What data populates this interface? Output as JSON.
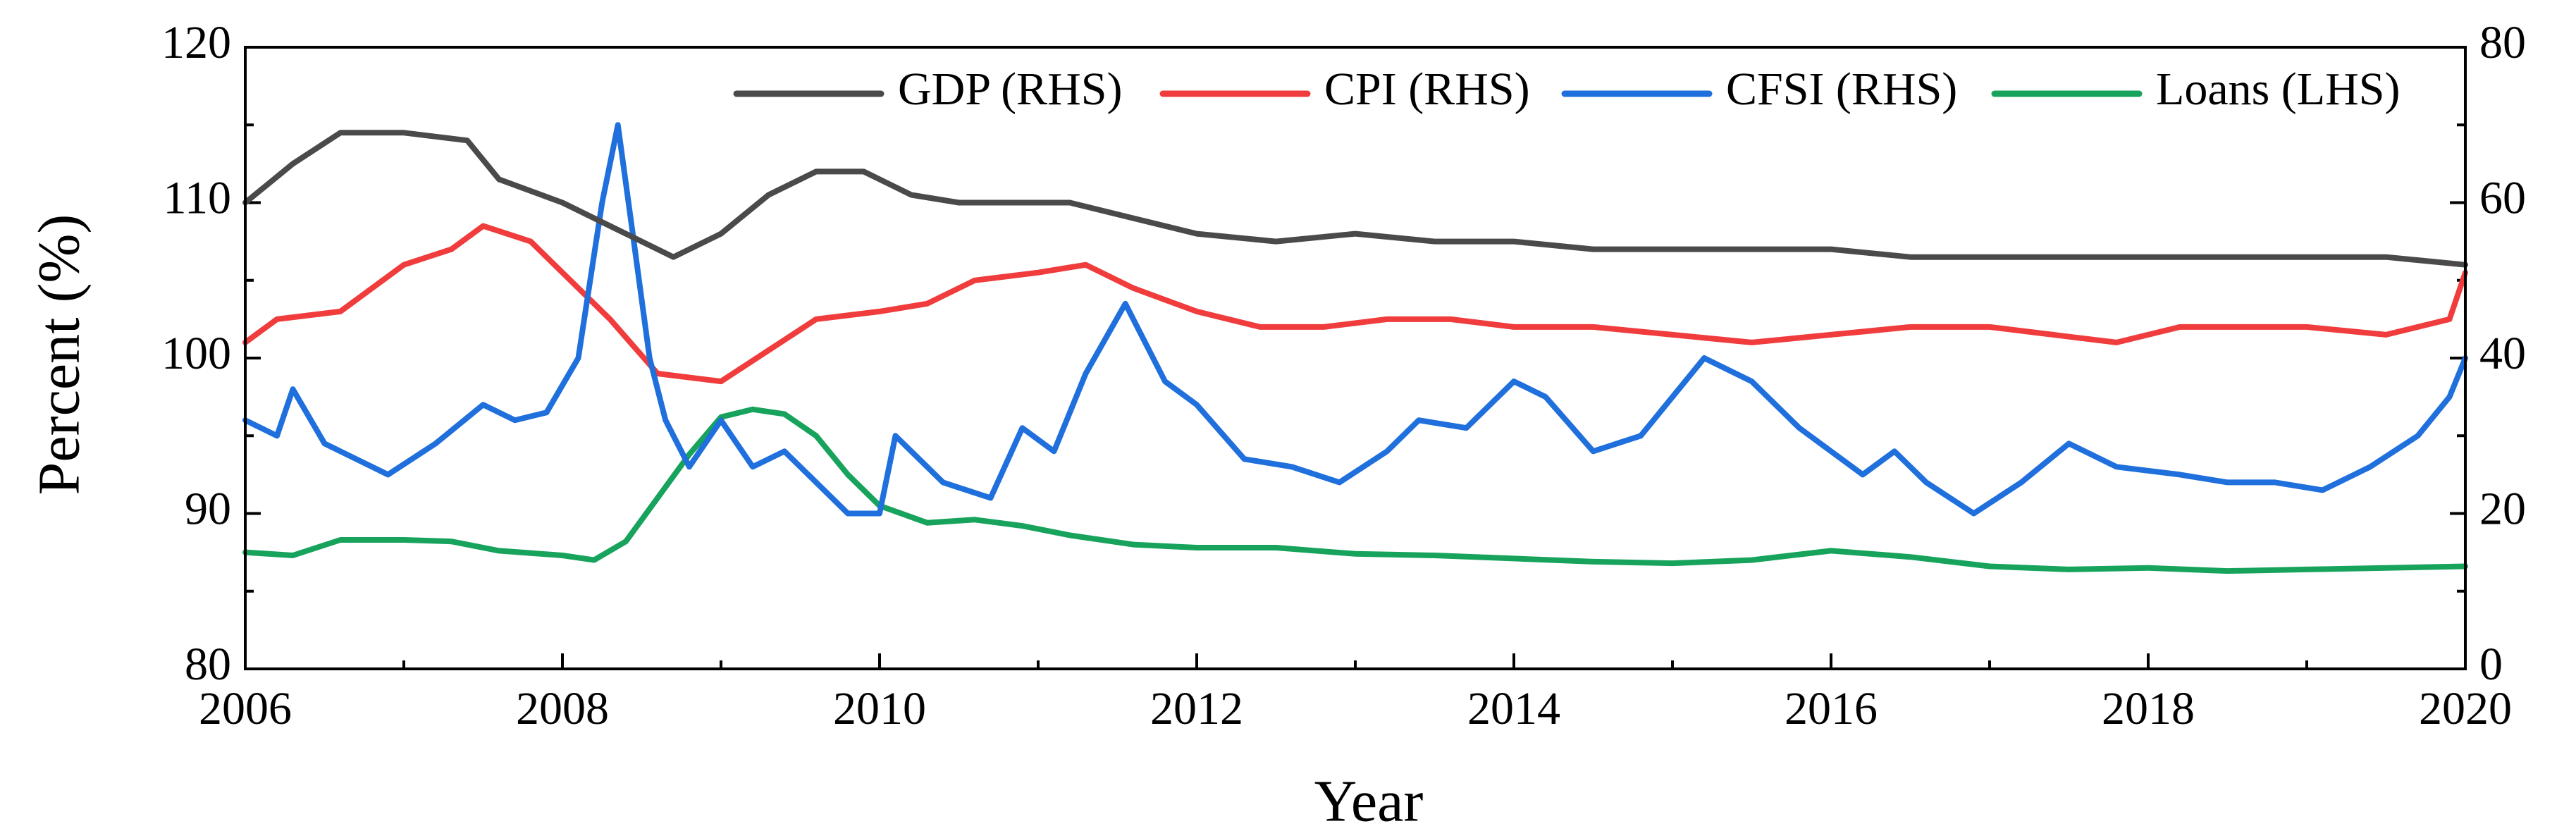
{
  "chart_data": {
    "type": "line",
    "title": "",
    "xlabel": "Year",
    "ylabel": "Percent (%)",
    "xlim": [
      2006,
      2020
    ],
    "ylim_left": [
      80,
      120
    ],
    "ylim_right": [
      0,
      80
    ],
    "x_ticks": [
      "2006",
      "2008",
      "2010",
      "2012",
      "2014",
      "2016",
      "2018",
      "2020"
    ],
    "y_ticks_left": [
      "80",
      "90",
      "100",
      "110",
      "120"
    ],
    "y_ticks_right": [
      "0",
      "20",
      "40",
      "60",
      "80"
    ],
    "legend_position": "top-right",
    "series": [
      {
        "name": "GDP (RHS)",
        "axis": "right",
        "color": "#4a4a4a",
        "x": [
          2006.0,
          2006.3,
          2006.6,
          2007.0,
          2007.4,
          2007.6,
          2008.0,
          2008.4,
          2008.7,
          2009.0,
          2009.3,
          2009.6,
          2009.9,
          2010.2,
          2010.5,
          2010.8,
          2011.2,
          2011.6,
          2012.0,
          2012.5,
          2013.0,
          2013.5,
          2014.0,
          2014.5,
          2015.0,
          2015.5,
          2016.0,
          2016.5,
          2017.0,
          2017.5,
          2018.0,
          2018.5,
          2019.0,
          2019.5,
          2020.0
        ],
        "values": [
          60,
          65,
          69,
          69,
          68,
          63,
          60,
          56,
          53,
          56,
          61,
          64,
          64,
          61,
          60,
          60,
          60,
          58,
          56,
          55,
          56,
          55,
          55,
          54,
          54,
          54,
          54,
          53,
          53,
          53,
          53,
          53,
          53,
          53,
          52
        ]
      },
      {
        "name": "CPI (RHS)",
        "axis": "right",
        "color": "#f03c3c",
        "x": [
          2006.0,
          2006.2,
          2006.6,
          2007.0,
          2007.3,
          2007.5,
          2007.8,
          2008.0,
          2008.3,
          2008.6,
          2009.0,
          2009.3,
          2009.6,
          2010.0,
          2010.3,
          2010.6,
          2011.0,
          2011.3,
          2011.6,
          2012.0,
          2012.4,
          2012.8,
          2013.2,
          2013.6,
          2014.0,
          2014.5,
          2015.0,
          2015.5,
          2016.0,
          2016.5,
          2017.0,
          2017.4,
          2017.8,
          2018.2,
          2018.6,
          2019.0,
          2019.5,
          2019.9,
          2020.0
        ],
        "values": [
          42,
          45,
          46,
          52,
          54,
          57,
          55,
          51,
          45,
          38,
          37,
          41,
          45,
          46,
          47,
          50,
          51,
          52,
          49,
          46,
          44,
          44,
          45,
          45,
          44,
          44,
          43,
          42,
          43,
          44,
          44,
          43,
          42,
          44,
          44,
          44,
          43,
          45,
          51
        ]
      },
      {
        "name": "CFSI (RHS)",
        "axis": "right",
        "color": "#1f6fdc",
        "x": [
          2006.0,
          2006.2,
          2006.3,
          2006.5,
          2006.6,
          2006.9,
          2007.2,
          2007.5,
          2007.7,
          2007.9,
          2008.1,
          2008.25,
          2008.35,
          2008.45,
          2008.55,
          2008.65,
          2008.8,
          2009.0,
          2009.2,
          2009.4,
          2009.6,
          2009.8,
          2010.0,
          2010.1,
          2010.4,
          2010.7,
          2010.9,
          2011.1,
          2011.3,
          2011.55,
          2011.8,
          2012.0,
          2012.3,
          2012.6,
          2012.9,
          2013.2,
          2013.4,
          2013.7,
          2014.0,
          2014.2,
          2014.5,
          2014.8,
          2015.2,
          2015.5,
          2015.8,
          2016.0,
          2016.2,
          2016.4,
          2016.6,
          2016.9,
          2017.2,
          2017.5,
          2017.8,
          2018.2,
          2018.5,
          2018.8,
          2019.1,
          2019.4,
          2019.7,
          2019.9,
          2020.0
        ],
        "values": [
          32,
          30,
          36,
          29,
          28,
          25,
          29,
          34,
          32,
          33,
          40,
          60,
          70,
          55,
          40,
          32,
          26,
          32,
          26,
          28,
          24,
          20,
          20,
          30,
          24,
          22,
          31,
          28,
          38,
          47,
          37,
          34,
          27,
          26,
          24,
          28,
          32,
          31,
          37,
          35,
          28,
          30,
          40,
          37,
          31,
          28,
          25,
          28,
          24,
          20,
          24,
          29,
          26,
          25,
          24,
          24,
          23,
          26,
          30,
          35,
          40
        ]
      },
      {
        "name": "Loans (LHS)",
        "axis": "left",
        "color": "#17a35c",
        "x": [
          2006.0,
          2006.3,
          2006.6,
          2007.0,
          2007.3,
          2007.6,
          2008.0,
          2008.2,
          2008.4,
          2008.6,
          2008.8,
          2009.0,
          2009.2,
          2009.4,
          2009.6,
          2009.8,
          2010.0,
          2010.3,
          2010.6,
          2010.9,
          2011.2,
          2011.6,
          2012.0,
          2012.5,
          2013.0,
          2013.5,
          2014.0,
          2014.5,
          2015.0,
          2015.5,
          2016.0,
          2016.5,
          2017.0,
          2017.5,
          2018.0,
          2018.5,
          2019.0,
          2019.5,
          2020.0
        ],
        "values": [
          87.5,
          87.3,
          88.3,
          88.3,
          88.2,
          87.6,
          87.3,
          87.0,
          88.2,
          91.0,
          93.8,
          96.2,
          96.7,
          96.4,
          95.0,
          92.5,
          90.5,
          89.4,
          89.6,
          89.2,
          88.6,
          88.0,
          87.8,
          87.8,
          87.4,
          87.3,
          87.1,
          86.9,
          86.8,
          87.0,
          87.6,
          87.2,
          86.6,
          86.4,
          86.5,
          86.3,
          86.4,
          86.5,
          86.6
        ]
      }
    ]
  }
}
